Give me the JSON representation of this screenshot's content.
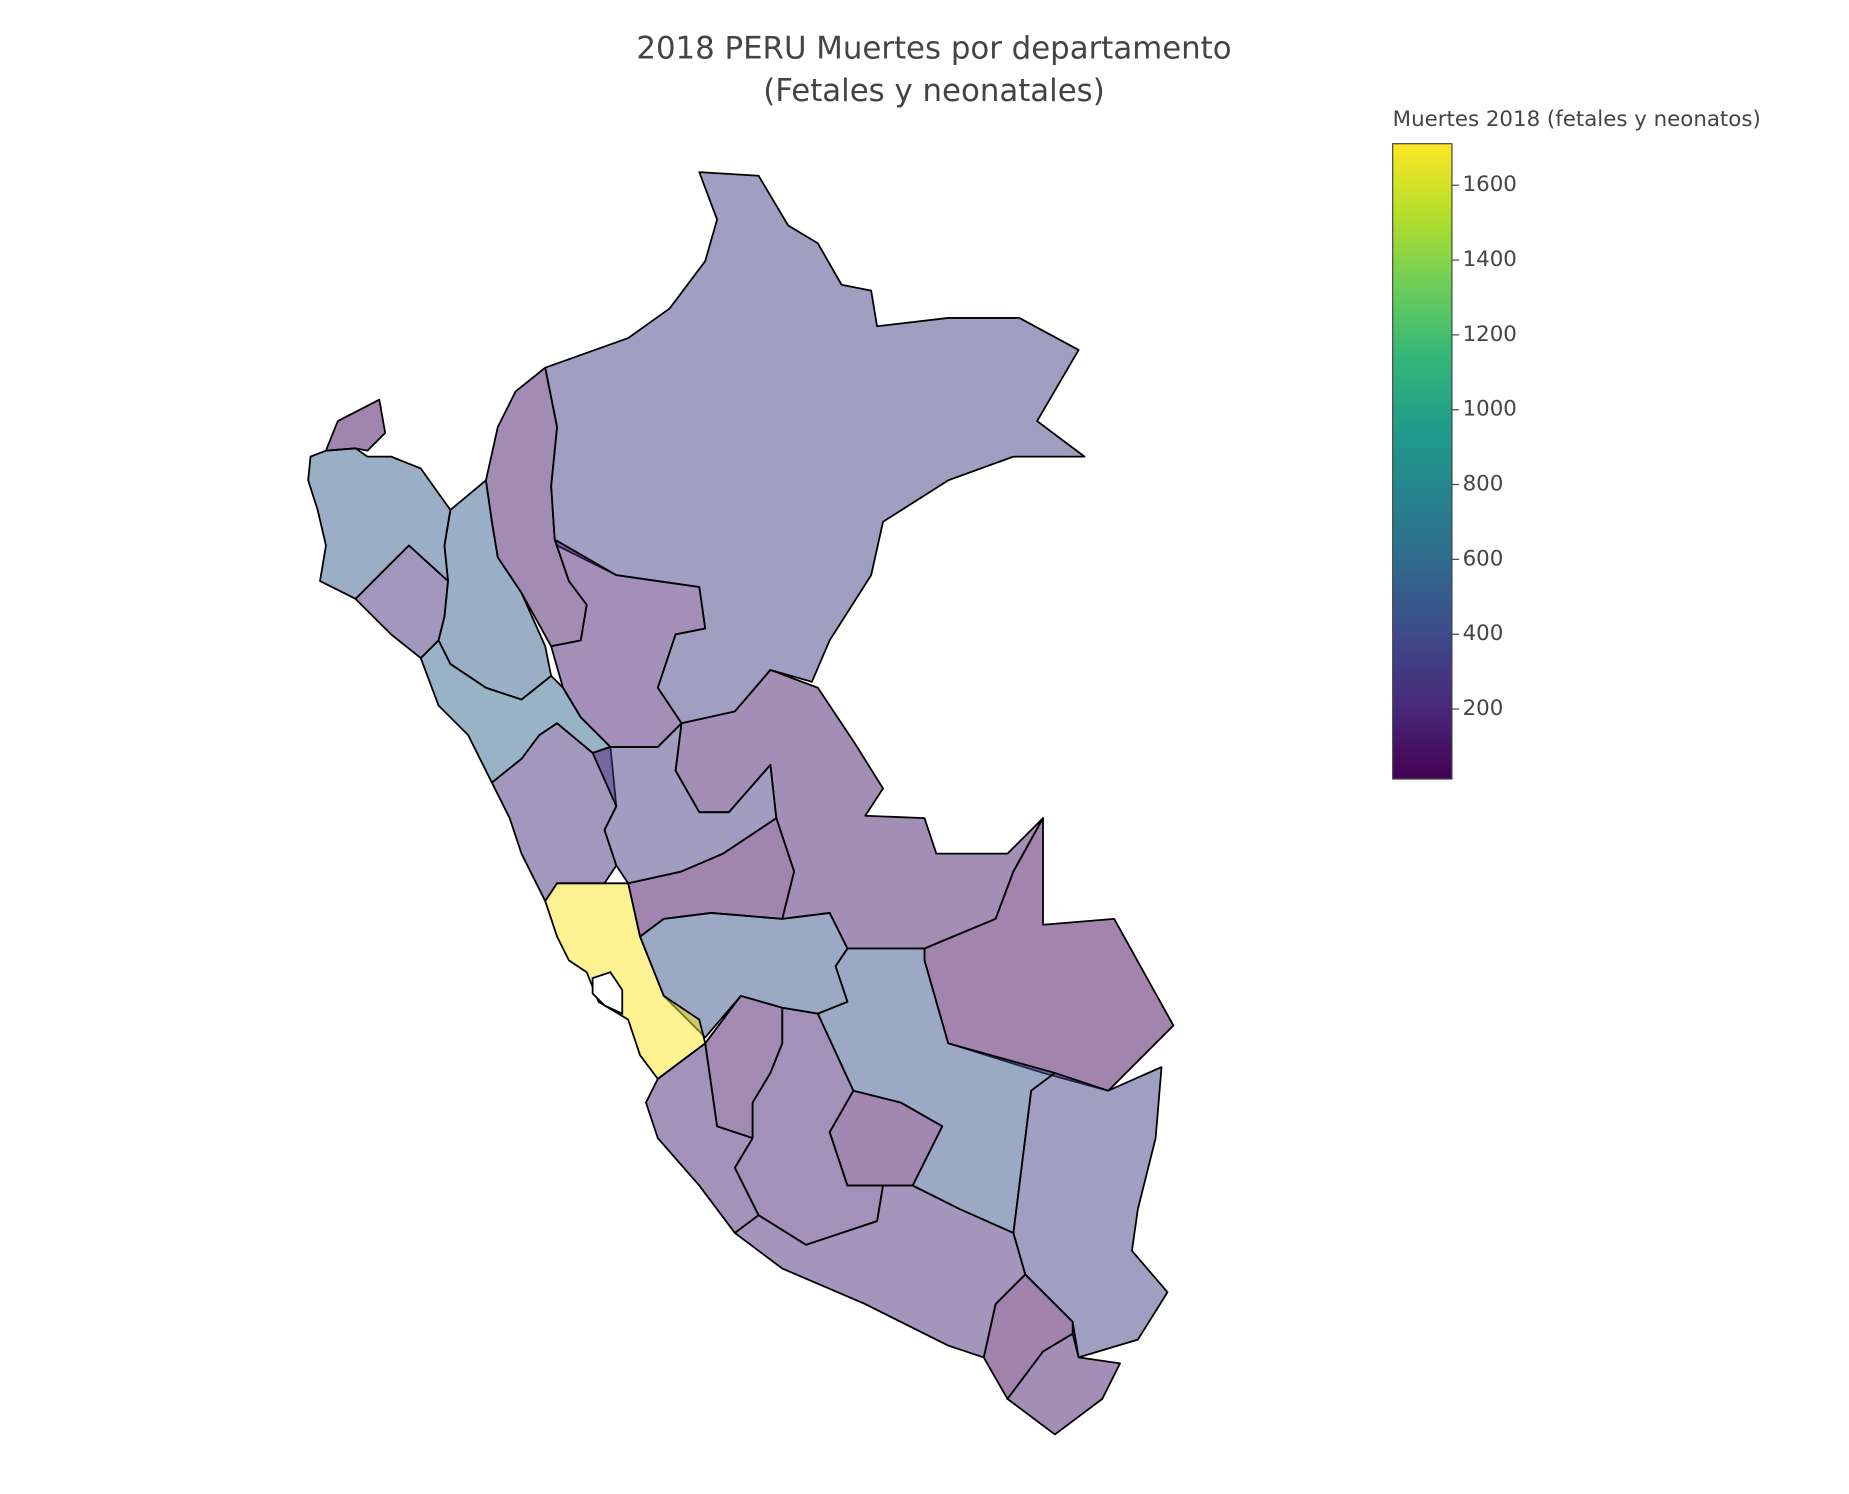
{
  "chart_data": {
    "type": "choropleth",
    "title": "2018 PERU Muertes por departamento",
    "subtitle": "(Fetales y neonatales)",
    "colorbar_title": "Muertes 2018 (fetales y neonatos)",
    "values": [
      60,
      520,
      250,
      520,
      130,
      330,
      160,
      560,
      250,
      300,
      150,
      60,
      450,
      1700,
      50,
      460,
      340,
      150,
      40,
      220,
      120,
      200,
      180,
      90
    ],
    "clim": [
      13,
      1711
    ],
    "cticks": [
      200,
      400,
      600,
      800,
      1000,
      1200,
      1400,
      1600
    ],
    "colorscale": [
      "#440154",
      "#482878",
      "#3e4989",
      "#31688e",
      "#26828e",
      "#1f9e89",
      "#35b779",
      "#6ece58",
      "#b5de2b",
      "#fde725"
    ],
    "opacity": 0.5
  }
}
